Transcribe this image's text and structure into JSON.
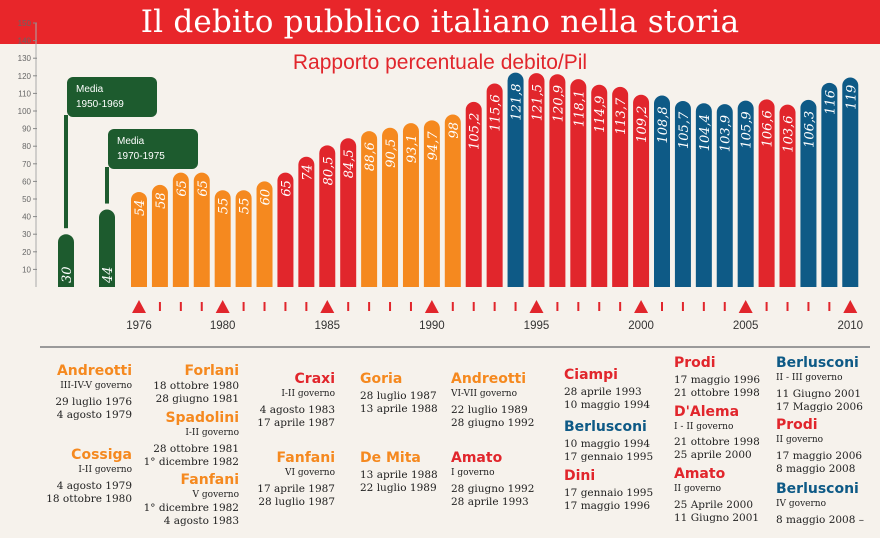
{
  "header": {
    "title": "Il debito pubblico italiano nella storia",
    "subtitle": "Rapporto percentuale debito/Pil"
  },
  "colors": {
    "banner": "#e8262a",
    "orange": "#f5891f",
    "red": "#e1262c",
    "blue": "#0e5a86",
    "green": "#1d5b2e"
  },
  "chart_data": {
    "type": "bar",
    "title": "Rapporto percentuale debito/Pil",
    "ylim": [
      0,
      150
    ],
    "yticks": [
      10,
      20,
      30,
      40,
      50,
      60,
      70,
      80,
      90,
      100,
      110,
      120,
      130,
      140,
      150
    ],
    "averages": [
      {
        "label": "Media 1950-1969",
        "value": 30,
        "value_label": "30"
      },
      {
        "label": "Media 1970-1975",
        "value": 44,
        "value_label": "44"
      }
    ],
    "categories": [
      1976,
      1977,
      1978,
      1979,
      1980,
      1981,
      1982,
      1983,
      1984,
      1985,
      1986,
      1987,
      1988,
      1989,
      1990,
      1991,
      1992,
      1993,
      1994,
      1995,
      1996,
      1997,
      1998,
      1999,
      2000,
      2001,
      2002,
      2003,
      2004,
      2005,
      2006,
      2007,
      2008,
      2009,
      2010
    ],
    "values": [
      54,
      58,
      65,
      65,
      55,
      55,
      60,
      65,
      74,
      80.5,
      84.5,
      88.6,
      90.5,
      93.1,
      94.7,
      98,
      105.2,
      115.6,
      121.8,
      121.5,
      120.9,
      118.1,
      114.9,
      113.7,
      109.2,
      108.8,
      105.7,
      104.4,
      103.9,
      105.9,
      106.6,
      103.6,
      106.3,
      116,
      119
    ],
    "value_labels": [
      "54",
      "58",
      "65",
      "65",
      "55",
      "55",
      "60",
      "65",
      "74",
      "80,5",
      "84,5",
      "88,6",
      "90,5",
      "93,1",
      "94,7",
      "98",
      "105,2",
      "115,6",
      "121,8",
      "121,5",
      "120,9",
      "118,1",
      "114,9",
      "113,7",
      "109,2",
      "108,8",
      "105,7",
      "104,4",
      "103,9",
      "105,9",
      "106,6",
      "103,6",
      "106,3",
      "116",
      "119"
    ],
    "bar_colors": [
      "orange",
      "orange",
      "orange",
      "orange",
      "orange",
      "orange",
      "orange",
      "red",
      "red",
      "red",
      "red",
      "orange",
      "orange",
      "orange",
      "orange",
      "orange",
      "red",
      "red",
      "blue",
      "red",
      "red",
      "red",
      "red",
      "red",
      "red",
      "blue",
      "blue",
      "blue",
      "blue",
      "blue",
      "red",
      "red",
      "blue",
      "blue",
      "blue"
    ],
    "xtick_labels": [
      {
        "year": 1976,
        "label": "1976"
      },
      {
        "year": 1980,
        "label": "1980"
      },
      {
        "year": 1985,
        "label": "1985"
      },
      {
        "year": 1990,
        "label": "1990"
      },
      {
        "year": 1995,
        "label": "1995"
      },
      {
        "year": 2000,
        "label": "2000"
      },
      {
        "year": 2005,
        "label": "2005"
      },
      {
        "year": 2010,
        "label": "2010"
      }
    ]
  },
  "governments": [
    {
      "name": "Andreotti",
      "color": "orange",
      "government": "III-IV-V governo",
      "dates": [
        "29 luglio 1976",
        "4 agosto 1979"
      ]
    },
    {
      "name": "Cossiga",
      "color": "orange",
      "government": "I-II governo",
      "dates": [
        "4 agosto 1979",
        "18 ottobre 1980"
      ]
    },
    {
      "name": "Forlani",
      "color": "orange",
      "government": "",
      "dates": [
        "18 ottobre 1980",
        "28 giugno 1981"
      ]
    },
    {
      "name": "Spadolini",
      "color": "orange",
      "government": "I-II governo",
      "dates": [
        "28 ottobre 1981",
        "1° dicembre 1982"
      ]
    },
    {
      "name": "Fanfani",
      "color": "orange",
      "government": "V governo",
      "dates": [
        "1° dicembre 1982",
        "4 agosto 1983"
      ]
    },
    {
      "name": "Craxi",
      "color": "red",
      "government": "I-II governo",
      "dates": [
        "4 agosto 1983",
        "17 aprile 1987"
      ]
    },
    {
      "name": "Fanfani",
      "color": "orange",
      "government": "VI governo",
      "dates": [
        "17 aprile 1987",
        "28 luglio 1987"
      ]
    },
    {
      "name": "Goria",
      "color": "orange",
      "government": "",
      "dates": [
        "28 luglio 1987",
        "13 aprile 1988"
      ]
    },
    {
      "name": "De Mita",
      "color": "orange",
      "government": "",
      "dates": [
        "13 aprile 1988",
        "22 luglio 1989"
      ]
    },
    {
      "name": "Andreotti",
      "color": "orange",
      "government": "VI-VII governo",
      "dates": [
        "22 luglio 1989",
        "28 giugno 1992"
      ]
    },
    {
      "name": "Amato",
      "color": "red",
      "government": "I governo",
      "dates": [
        "28 giugno 1992",
        "28 aprile 1993"
      ]
    },
    {
      "name": "Ciampi",
      "color": "red",
      "government": "",
      "dates": [
        "28 aprile 1993",
        "10 maggio 1994"
      ]
    },
    {
      "name": "Berlusconi",
      "color": "blue",
      "government": "",
      "dates": [
        "10 maggio 1994",
        "17 gennaio 1995"
      ]
    },
    {
      "name": "Dini",
      "color": "red",
      "government": "",
      "dates": [
        "17 gennaio 1995",
        "17 maggio 1996"
      ]
    },
    {
      "name": "Prodi",
      "color": "red",
      "government": "",
      "dates": [
        "17 maggio 1996",
        "21 ottobre 1998"
      ]
    },
    {
      "name": "D'Alema",
      "color": "red",
      "government": "I - II governo",
      "dates": [
        "21 ottobre 1998",
        "25 aprile 2000"
      ]
    },
    {
      "name": "Amato",
      "color": "red",
      "government": "II governo",
      "dates": [
        "25 Aprile 2000",
        "11 Giugno 2001"
      ]
    },
    {
      "name": "Berlusconi",
      "color": "blue",
      "government": "II - III governo",
      "dates": [
        "11 Giugno 2001",
        "17 Maggio 2006"
      ]
    },
    {
      "name": "Prodi",
      "color": "red",
      "government": "II governo",
      "dates": [
        "17 maggio 2006",
        "8 maggio 2008"
      ]
    },
    {
      "name": "Berlusconi",
      "color": "blue",
      "government": "IV governo",
      "dates": [
        "8 maggio 2008 –"
      ]
    }
  ]
}
